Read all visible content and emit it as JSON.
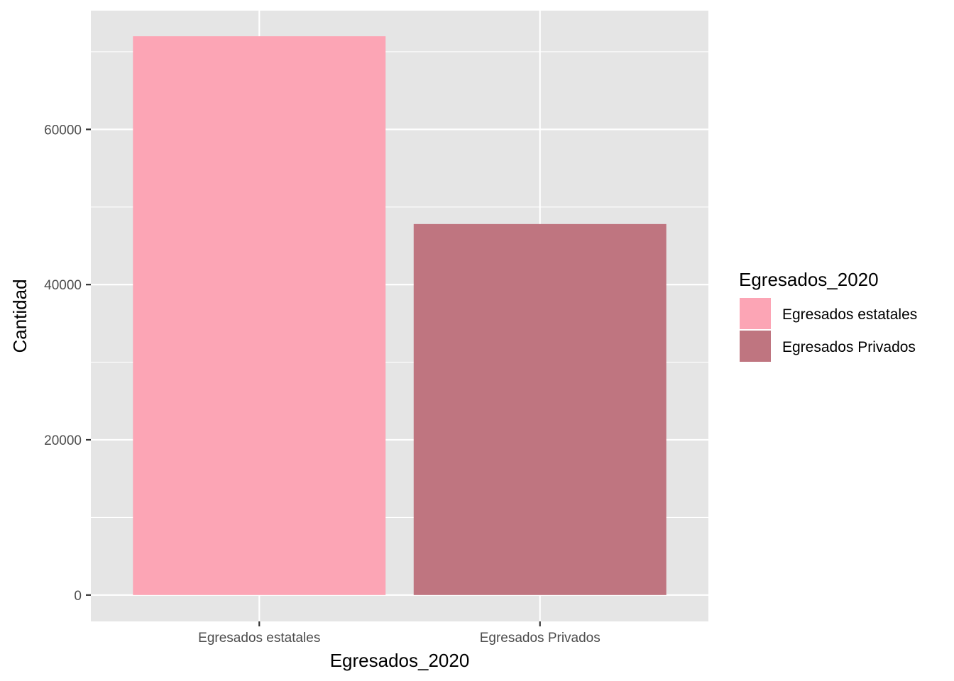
{
  "chart_data": {
    "type": "bar",
    "categories": [
      "Egresados estatales",
      "Egresados Privados"
    ],
    "values": [
      72000,
      47800
    ],
    "colors": [
      "#fca5b5",
      "#bf7580"
    ],
    "xlabel": "Egresados_2020",
    "ylabel": "Cantidad",
    "ylim": [
      -3400,
      75300
    ],
    "yticks": [
      0,
      20000,
      40000,
      60000
    ],
    "ytick_labels": [
      "0",
      "20000",
      "40000",
      "60000"
    ],
    "minor_yticks": [
      10000,
      30000,
      50000,
      70000
    ],
    "grid": true,
    "panel_background": "#e5e5e5",
    "grid_color": "#ffffff",
    "legend": {
      "title": "Egresados_2020",
      "position": "right",
      "entries": [
        "Egresados estatales",
        "Egresados Privados"
      ]
    }
  }
}
